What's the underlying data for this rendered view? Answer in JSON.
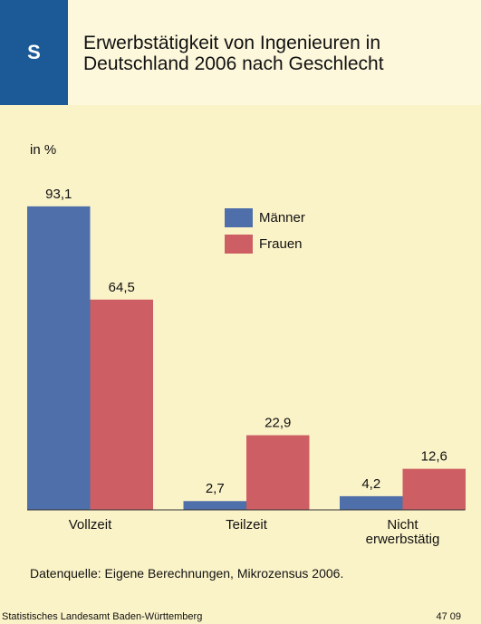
{
  "badge": "S",
  "chart_data": {
    "type": "bar",
    "title": "Erwerbstätigkeit von Ingenieuren in Deutschland 2006 nach Geschlecht",
    "unit_label": "in %",
    "categories": [
      "Vollzeit",
      "Teilzeit",
      "Nicht erwerbstätig"
    ],
    "series": [
      {
        "name": "Männer",
        "color": "#4e6fa9",
        "values": [
          93.1,
          2.7,
          4.2
        ],
        "value_labels": [
          "93,1",
          "2,7",
          "4,2"
        ]
      },
      {
        "name": "Frauen",
        "color": "#cd5e63",
        "values": [
          64.5,
          22.9,
          12.6
        ],
        "value_labels": [
          "64,5",
          "22,9",
          "12,6"
        ]
      }
    ],
    "source": "Datenquelle: Eigene Berechnungen, Mikrozensus 2006."
  },
  "footer": {
    "publisher": "Statistisches Landesamt Baden-Württemberg",
    "code": "47 09"
  }
}
